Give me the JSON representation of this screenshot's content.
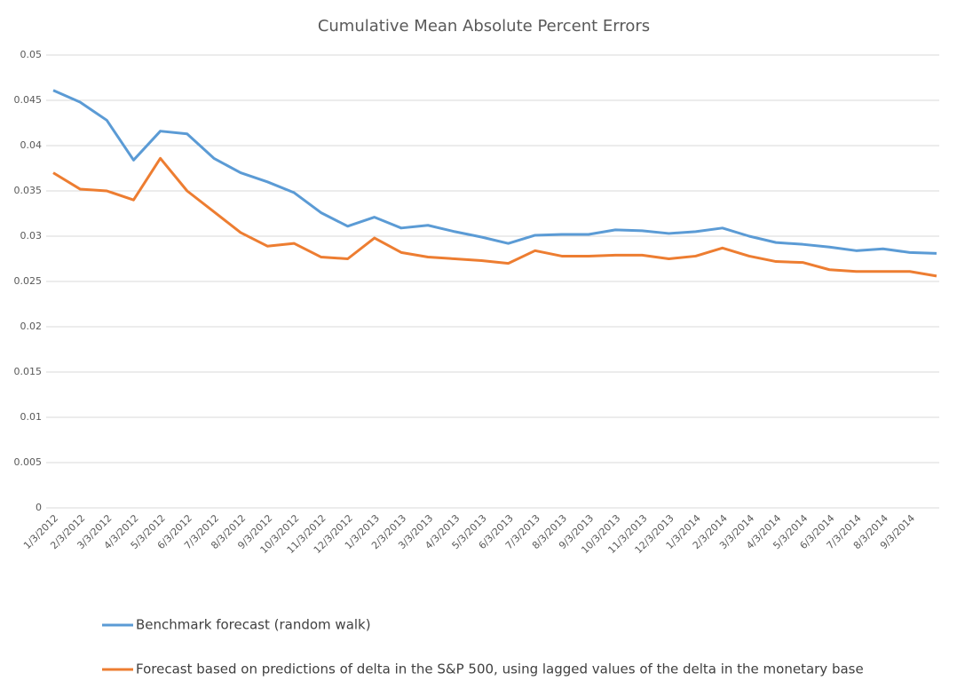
{
  "chart_data": {
    "type": "line",
    "title": "Cumulative Mean Absolute Percent Errors",
    "categories": [
      "1/3/2012",
      "2/3/2012",
      "3/3/2012",
      "4/3/2012",
      "5/3/2012",
      "6/3/2012",
      "7/3/2012",
      "8/3/2012",
      "9/3/2012",
      "10/3/2012",
      "11/3/2012",
      "12/3/2012",
      "1/3/2013",
      "2/3/2013",
      "3/3/2013",
      "4/3/2013",
      "5/3/2013",
      "6/3/2013",
      "7/3/2013",
      "8/3/2013",
      "9/3/2013",
      "10/3/2013",
      "11/3/2013",
      "12/3/2013",
      "1/3/2014",
      "2/3/2014",
      "3/3/2014",
      "4/3/2014",
      "5/3/2014",
      "6/3/2014",
      "7/3/2014",
      "8/3/2014",
      "9/3/2014",
      null
    ],
    "series": [
      {
        "name": "Benchmark forecast (random walk)",
        "color": "#5b9bd5",
        "values": [
          0.0461,
          0.0448,
          0.0428,
          0.0384,
          0.0416,
          0.0413,
          0.0386,
          0.037,
          0.036,
          0.0348,
          0.0326,
          0.0311,
          0.0321,
          0.0309,
          0.0312,
          0.0305,
          0.0299,
          0.0292,
          0.0301,
          0.0302,
          0.0302,
          0.0307,
          0.0306,
          0.0303,
          0.0305,
          0.0309,
          0.03,
          0.0293,
          0.0291,
          0.0288,
          0.0284,
          0.0286,
          0.0282,
          0.0281
        ]
      },
      {
        "name": "Forecast based on predictions of delta in the S&P 500, using lagged values of the delta in the monetary base",
        "color": "#ed7d31",
        "values": [
          0.037,
          0.0352,
          0.035,
          0.034,
          0.0386,
          0.035,
          0.0327,
          0.0304,
          0.0289,
          0.0292,
          0.0277,
          0.0275,
          0.0298,
          0.0282,
          0.0277,
          0.0275,
          0.0273,
          0.027,
          0.0284,
          0.0278,
          0.0278,
          0.0279,
          0.0279,
          0.0275,
          0.0278,
          0.0287,
          0.0278,
          0.0272,
          0.0271,
          0.0263,
          0.0261,
          0.0261,
          0.0261,
          0.0256
        ]
      }
    ],
    "ylim": [
      0,
      0.05
    ],
    "yticks": [
      0,
      0.005,
      0.01,
      0.015,
      0.02,
      0.025,
      0.03,
      0.035,
      0.04,
      0.045,
      0.05
    ],
    "grid": true,
    "legend": "bottom"
  }
}
